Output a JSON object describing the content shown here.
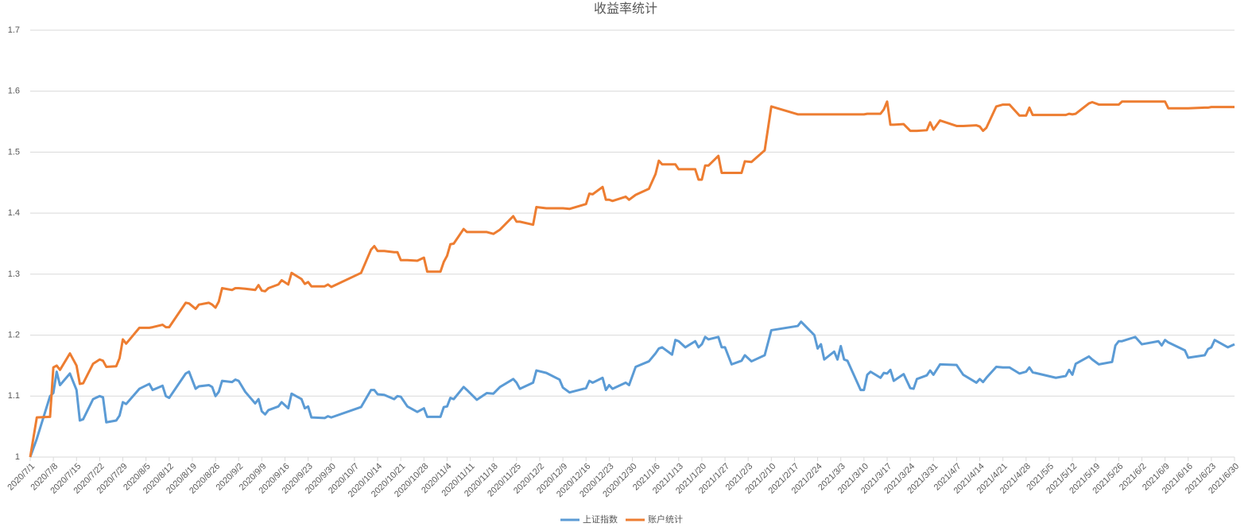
{
  "chart_data": {
    "type": "line",
    "title": "收益率统计",
    "x": [
      "2020/7/1",
      "2020/7/3",
      "2020/7/7",
      "2020/7/8",
      "2020/7/9",
      "2020/7/10",
      "2020/7/13",
      "2020/7/15",
      "2020/7/16",
      "2020/7/17",
      "2020/7/20",
      "2020/7/22",
      "2020/7/23",
      "2020/7/24",
      "2020/7/27",
      "2020/7/28",
      "2020/7/29",
      "2020/7/30",
      "2020/8/3",
      "2020/8/6",
      "2020/8/7",
      "2020/8/10",
      "2020/8/11",
      "2020/8/12",
      "2020/8/17",
      "2020/8/18",
      "2020/8/20",
      "2020/8/21",
      "2020/8/24",
      "2020/8/25",
      "2020/8/26",
      "2020/8/27",
      "2020/8/28",
      "2020/8/31",
      "2020/9/1",
      "2020/9/2",
      "2020/9/4",
      "2020/9/7",
      "2020/9/8",
      "2020/9/9",
      "2020/9/10",
      "2020/9/11",
      "2020/9/14",
      "2020/9/15",
      "2020/9/17",
      "2020/9/18",
      "2020/9/21",
      "2020/9/22",
      "2020/9/23",
      "2020/9/24",
      "2020/9/28",
      "2020/9/29",
      "2020/9/30",
      "2020/10/9",
      "2020/10/12",
      "2020/10/13",
      "2020/10/14",
      "2020/10/16",
      "2020/10/19",
      "2020/10/20",
      "2020/10/21",
      "2020/10/23",
      "2020/10/26",
      "2020/10/28",
      "2020/10/29",
      "2020/11/2",
      "2020/11/3",
      "2020/11/4",
      "2020/11/5",
      "2020/11/6",
      "2020/11/9",
      "2020/11/10",
      "2020/11/13",
      "2020/11/16",
      "2020/11/18",
      "2020/11/20",
      "2020/11/24",
      "2020/11/25",
      "2020/11/26",
      "2020/11/30",
      "2020/12/1",
      "2020/12/4",
      "2020/12/8",
      "2020/12/9",
      "2020/12/11",
      "2020/12/16",
      "2020/12/17",
      "2020/12/18",
      "2020/12/21",
      "2020/12/22",
      "2020/12/23",
      "2020/12/24",
      "2020/12/28",
      "2020/12/29",
      "2020/12/31",
      "2021/1/4",
      "2021/1/6",
      "2021/1/7",
      "2021/1/8",
      "2021/1/11",
      "2021/1/12",
      "2021/1/13",
      "2021/1/15",
      "2021/1/18",
      "2021/1/19",
      "2021/1/20",
      "2021/1/21",
      "2021/1/22",
      "2021/1/25",
      "2021/1/26",
      "2021/1/27",
      "2021/1/29",
      "2021/2/1",
      "2021/2/2",
      "2021/2/4",
      "2021/2/8",
      "2021/2/10",
      "2021/2/18",
      "2021/2/19",
      "2021/2/23",
      "2021/2/24",
      "2021/2/25",
      "2021/2/26",
      "2021/3/1",
      "2021/3/2",
      "2021/3/3",
      "2021/3/4",
      "2021/3/5",
      "2021/3/9",
      "2021/3/10",
      "2021/3/11",
      "2021/3/12",
      "2021/3/15",
      "2021/3/16",
      "2021/3/17",
      "2021/3/18",
      "2021/3/19",
      "2021/3/22",
      "2021/3/24",
      "2021/3/25",
      "2021/3/26",
      "2021/3/29",
      "2021/3/30",
      "2021/3/31",
      "2021/4/2",
      "2021/4/7",
      "2021/4/9",
      "2021/4/13",
      "2021/4/14",
      "2021/4/15",
      "2021/4/16",
      "2021/4/19",
      "2021/4/21",
      "2021/4/23",
      "2021/4/26",
      "2021/4/28",
      "2021/4/29",
      "2021/4/30",
      "2021/5/7",
      "2021/5/10",
      "2021/5/11",
      "2021/5/12",
      "2021/5/13",
      "2021/5/17",
      "2021/5/18",
      "2021/5/20",
      "2021/5/24",
      "2021/5/25",
      "2021/5/26",
      "2021/5/27",
      "2021/5/31",
      "2021/6/2",
      "2021/6/4",
      "2021/6/7",
      "2021/6/8",
      "2021/6/9",
      "2021/6/10",
      "2021/6/15",
      "2021/6/16",
      "2021/6/21",
      "2021/6/22",
      "2021/6/23",
      "2021/6/24",
      "2021/6/28",
      "2021/6/30"
    ],
    "series": [
      {
        "name": "上证指数",
        "color": "#5b9bd5",
        "values": [
          1,
          1.03,
          1.1,
          1.105,
          1.14,
          1.118,
          1.137,
          1.11,
          1.06,
          1.062,
          1.095,
          1.1,
          1.098,
          1.057,
          1.06,
          1.068,
          1.09,
          1.087,
          1.112,
          1.12,
          1.11,
          1.117,
          1.1,
          1.097,
          1.137,
          1.14,
          1.112,
          1.116,
          1.118,
          1.115,
          1.1,
          1.107,
          1.125,
          1.123,
          1.127,
          1.125,
          1.107,
          1.088,
          1.095,
          1.075,
          1.07,
          1.077,
          1.083,
          1.09,
          1.08,
          1.104,
          1.095,
          1.08,
          1.083,
          1.065,
          1.064,
          1.067,
          1.065,
          1.082,
          1.11,
          1.11,
          1.103,
          1.102,
          1.095,
          1.1,
          1.099,
          1.083,
          1.074,
          1.08,
          1.066,
          1.066,
          1.082,
          1.083,
          1.097,
          1.095,
          1.115,
          1.11,
          1.094,
          1.105,
          1.104,
          1.115,
          1.128,
          1.122,
          1.112,
          1.122,
          1.142,
          1.138,
          1.127,
          1.114,
          1.106,
          1.113,
          1.125,
          1.122,
          1.13,
          1.11,
          1.118,
          1.112,
          1.122,
          1.118,
          1.148,
          1.157,
          1.17,
          1.178,
          1.18,
          1.168,
          1.192,
          1.19,
          1.18,
          1.19,
          1.18,
          1.185,
          1.197,
          1.193,
          1.197,
          1.18,
          1.18,
          1.152,
          1.158,
          1.167,
          1.157,
          1.167,
          1.208,
          1.215,
          1.222,
          1.2,
          1.178,
          1.185,
          1.16,
          1.173,
          1.16,
          1.182,
          1.16,
          1.158,
          1.11,
          1.11,
          1.135,
          1.14,
          1.13,
          1.138,
          1.137,
          1.143,
          1.125,
          1.136,
          1.113,
          1.112,
          1.128,
          1.134,
          1.142,
          1.135,
          1.152,
          1.151,
          1.135,
          1.122,
          1.128,
          1.123,
          1.13,
          1.148,
          1.147,
          1.147,
          1.137,
          1.14,
          1.147,
          1.139,
          1.13,
          1.133,
          1.143,
          1.135,
          1.153,
          1.165,
          1.16,
          1.152,
          1.156,
          1.183,
          1.19,
          1.19,
          1.197,
          1.185,
          1.187,
          1.19,
          1.183,
          1.192,
          1.188,
          1.175,
          1.163,
          1.167,
          1.177,
          1.18,
          1.192,
          1.18,
          1.185
        ]
      },
      {
        "name": "账户统计",
        "color": "#ed7d31",
        "values": [
          1,
          1.065,
          1.066,
          1.147,
          1.15,
          1.143,
          1.17,
          1.15,
          1.12,
          1.121,
          1.153,
          1.16,
          1.158,
          1.148,
          1.149,
          1.162,
          1.193,
          1.186,
          1.212,
          1.212,
          1.213,
          1.217,
          1.213,
          1.213,
          1.253,
          1.252,
          1.243,
          1.25,
          1.253,
          1.25,
          1.245,
          1.255,
          1.277,
          1.274,
          1.277,
          1.277,
          1.276,
          1.274,
          1.282,
          1.273,
          1.272,
          1.277,
          1.283,
          1.29,
          1.283,
          1.302,
          1.292,
          1.284,
          1.287,
          1.28,
          1.28,
          1.283,
          1.279,
          1.302,
          1.34,
          1.346,
          1.338,
          1.338,
          1.336,
          1.336,
          1.323,
          1.323,
          1.322,
          1.327,
          1.304,
          1.304,
          1.32,
          1.33,
          1.349,
          1.35,
          1.374,
          1.369,
          1.369,
          1.369,
          1.366,
          1.373,
          1.395,
          1.386,
          1.386,
          1.381,
          1.41,
          1.408,
          1.408,
          1.408,
          1.407,
          1.415,
          1.432,
          1.431,
          1.443,
          1.422,
          1.422,
          1.42,
          1.427,
          1.422,
          1.43,
          1.44,
          1.464,
          1.486,
          1.48,
          1.48,
          1.48,
          1.472,
          1.472,
          1.472,
          1.455,
          1.455,
          1.478,
          1.478,
          1.494,
          1.466,
          1.466,
          1.466,
          1.466,
          1.485,
          1.484,
          1.503,
          1.575,
          1.562,
          1.562,
          1.562,
          1.562,
          1.562,
          1.562,
          1.562,
          1.562,
          1.562,
          1.562,
          1.562,
          1.562,
          1.562,
          1.563,
          1.563,
          1.563,
          1.57,
          1.583,
          1.545,
          1.545,
          1.546,
          1.535,
          1.535,
          1.535,
          1.536,
          1.549,
          1.537,
          1.552,
          1.543,
          1.543,
          1.544,
          1.542,
          1.535,
          1.54,
          1.575,
          1.578,
          1.578,
          1.56,
          1.56,
          1.573,
          1.561,
          1.561,
          1.561,
          1.563,
          1.562,
          1.563,
          1.58,
          1.582,
          1.578,
          1.578,
          1.578,
          1.578,
          1.583,
          1.583,
          1.583,
          1.583,
          1.583,
          1.583,
          1.583,
          1.572,
          1.572,
          1.572,
          1.573,
          1.573,
          1.574,
          1.574,
          1.574,
          1.574
        ]
      }
    ],
    "xlim": [
      "2020/7/1",
      "2021/6/30"
    ],
    "xticks": [
      "2020/7/1",
      "2020/7/8",
      "2020/7/15",
      "2020/7/22",
      "2020/7/29",
      "2020/8/5",
      "2020/8/12",
      "2020/8/19",
      "2020/8/26",
      "2020/9/2",
      "2020/9/9",
      "2020/9/16",
      "2020/9/23",
      "2020/9/30",
      "2020/10/7",
      "2020/10/14",
      "2020/10/21",
      "2020/10/28",
      "2020/11/4",
      "2020/11/11",
      "2020/11/18",
      "2020/11/25",
      "2020/12/2",
      "2020/12/9",
      "2020/12/16",
      "2020/12/23",
      "2020/12/30",
      "2021/1/6",
      "2021/1/13",
      "2021/1/20",
      "2021/1/27",
      "2021/2/3",
      "2021/2/10",
      "2021/2/17",
      "2021/2/24",
      "2021/3/3",
      "2021/3/10",
      "2021/3/17",
      "2021/3/24",
      "2021/3/31",
      "2021/4/7",
      "2021/4/14",
      "2021/4/21",
      "2021/4/28",
      "2021/5/5",
      "2021/5/12",
      "2021/5/19",
      "2021/5/26",
      "2021/6/2",
      "2021/6/9",
      "2021/6/16",
      "2021/6/23",
      "2021/6/30"
    ],
    "ylim": [
      1,
      1.7
    ],
    "yticks": [
      1,
      1.1,
      1.2,
      1.3,
      1.4,
      1.5,
      1.6,
      1.7
    ],
    "grid": true,
    "legend": "bottom"
  }
}
